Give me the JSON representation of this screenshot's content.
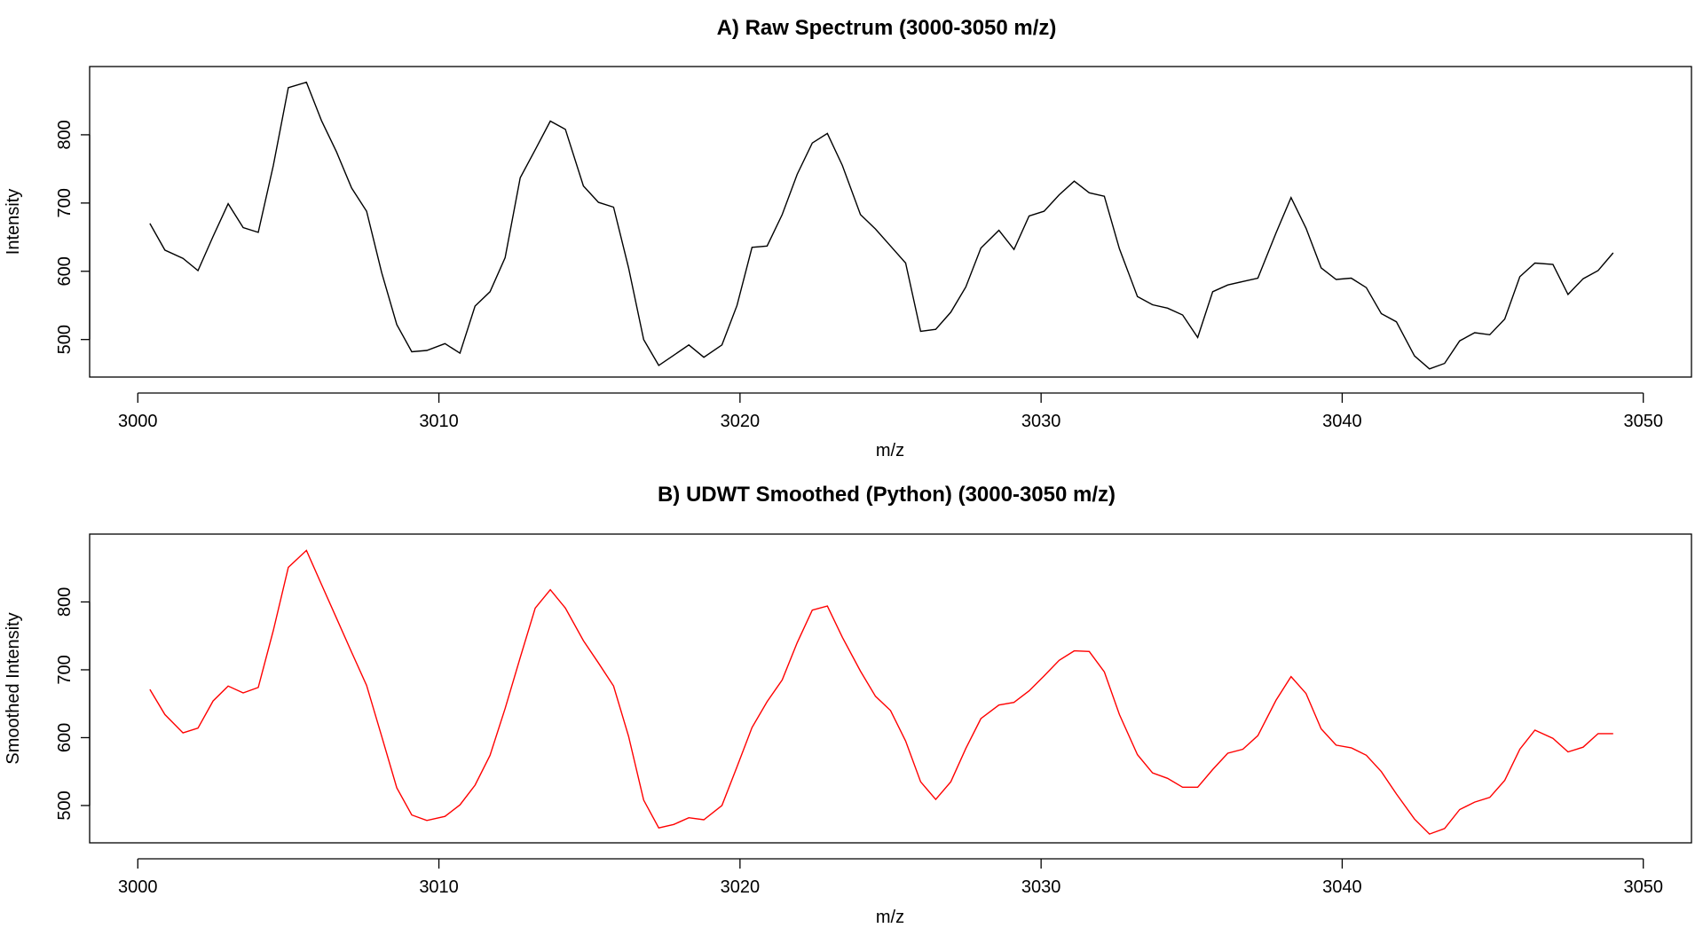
{
  "chart_data": [
    {
      "type": "line",
      "title": "A) Raw Spectrum (3000-3050 m/z)",
      "xlabel": "m/z",
      "ylabel": "Intensity",
      "xlim": [
        2998.4,
        3051.6
      ],
      "ylim": [
        445,
        900
      ],
      "xticks": [
        "3000",
        "3010",
        "3020",
        "3030",
        "3040",
        "3050"
      ],
      "xtick_values": [
        3000,
        3010,
        3020,
        3030,
        3040,
        3050
      ],
      "yticks": [
        "500",
        "600",
        "700",
        "800"
      ],
      "ytick_values": [
        500,
        600,
        700,
        800
      ],
      "color": "#000000",
      "series": [
        {
          "x": [
            3000.4,
            3000.9,
            3001.5,
            3002.0,
            3002.5,
            3003.0,
            3003.5,
            3004.0,
            3004.5,
            3005.0,
            3005.6,
            3006.1,
            3006.6,
            3007.1,
            3007.6,
            3008.1,
            3008.6,
            3009.1,
            3009.6,
            3010.2,
            3010.7,
            3011.2,
            3011.7,
            3012.2,
            3012.7,
            3013.2,
            3013.7,
            3014.2,
            3014.8,
            3015.3,
            3015.8,
            3016.3,
            3016.8,
            3017.3,
            3017.8,
            3018.3,
            3018.8,
            3019.4,
            3019.9,
            3020.4,
            3020.9,
            3021.4,
            3021.9,
            3022.4,
            3022.9,
            3023.4,
            3024.0,
            3024.5,
            3025.0,
            3025.5,
            3026.0,
            3026.5,
            3027.0,
            3027.5,
            3028.0,
            3028.6,
            3029.1,
            3029.6,
            3030.1,
            3030.6,
            3031.1,
            3031.6,
            3032.1,
            3032.6,
            3033.2,
            3033.7,
            3034.2,
            3034.7,
            3035.2,
            3035.7,
            3036.2,
            3036.7,
            3037.2,
            3037.8,
            3038.3,
            3038.8,
            3039.3,
            3039.8,
            3040.3,
            3040.8,
            3041.3,
            3041.8,
            3042.4,
            3042.9,
            3043.4,
            3043.9,
            3044.4,
            3044.9,
            3045.4,
            3045.9,
            3046.4,
            3047.0,
            3047.5,
            3048.0,
            3048.5,
            3049.0,
            3049.5
          ],
          "y": [
            670,
            631,
            619,
            601,
            651,
            699,
            664,
            657,
            755,
            869,
            877,
            821,
            775,
            722,
            688,
            598,
            522,
            482,
            484,
            494,
            480,
            549,
            570,
            620,
            737,
            778,
            820,
            808,
            725,
            701,
            694,
            605,
            500,
            462,
            477,
            492,
            474,
            492,
            550,
            635,
            637,
            683,
            742,
            788,
            802,
            755,
            683,
            662,
            637,
            612,
            512,
            515,
            540,
            577,
            634,
            660,
            632,
            681,
            688,
            712,
            732,
            715,
            710,
            633,
            563,
            551,
            546,
            536,
            503,
            570,
            580,
            585,
            590,
            656,
            708,
            663,
            605,
            588,
            590,
            576,
            538,
            526,
            476,
            457,
            465,
            498,
            510,
            507,
            530,
            592,
            612,
            610,
            566,
            589,
            601,
            627,
            null
          ]
        }
      ]
    },
    {
      "type": "line",
      "title": "B) UDWT Smoothed (Python) (3000-3050 m/z)",
      "xlabel": "m/z",
      "ylabel": "Smoothed Intensity",
      "xlim": [
        2998.4,
        3051.6
      ],
      "ylim": [
        445,
        900
      ],
      "xticks": [
        "3000",
        "3010",
        "3020",
        "3030",
        "3040",
        "3050"
      ],
      "xtick_values": [
        3000,
        3010,
        3020,
        3030,
        3040,
        3050
      ],
      "yticks": [
        "500",
        "600",
        "700",
        "800"
      ],
      "ytick_values": [
        500,
        600,
        700,
        800
      ],
      "color": "#ff0000",
      "series": [
        {
          "x": [
            3000.4,
            3000.9,
            3001.5,
            3002.0,
            3002.5,
            3003.0,
            3003.5,
            3004.0,
            3004.5,
            3005.0,
            3005.6,
            3006.1,
            3006.6,
            3007.1,
            3007.6,
            3008.1,
            3008.6,
            3009.1,
            3009.6,
            3010.2,
            3010.7,
            3011.2,
            3011.7,
            3012.2,
            3012.7,
            3013.2,
            3013.7,
            3014.2,
            3014.8,
            3015.3,
            3015.8,
            3016.3,
            3016.8,
            3017.3,
            3017.8,
            3018.3,
            3018.8,
            3019.4,
            3019.9,
            3020.4,
            3020.9,
            3021.4,
            3021.9,
            3022.4,
            3022.9,
            3023.4,
            3024.0,
            3024.5,
            3025.0,
            3025.5,
            3026.0,
            3026.5,
            3027.0,
            3027.5,
            3028.0,
            3028.6,
            3029.1,
            3029.6,
            3030.1,
            3030.6,
            3031.1,
            3031.6,
            3032.1,
            3032.6,
            3033.2,
            3033.7,
            3034.2,
            3034.7,
            3035.2,
            3035.7,
            3036.2,
            3036.7,
            3037.2,
            3037.8,
            3038.3,
            3038.8,
            3039.3,
            3039.8,
            3040.3,
            3040.8,
            3041.3,
            3041.8,
            3042.4,
            3042.9,
            3043.4,
            3043.9,
            3044.4,
            3044.9,
            3045.4,
            3045.9,
            3046.4,
            3047.0,
            3047.5,
            3048.0,
            3048.5,
            3049.0,
            3049.5
          ],
          "y": [
            671,
            634,
            607,
            614,
            654,
            676,
            666,
            674,
            758,
            851,
            876,
            826,
            776,
            726,
            677,
            602,
            526,
            486,
            478,
            484,
            501,
            530,
            574,
            643,
            718,
            791,
            818,
            791,
            743,
            710,
            676,
            602,
            508,
            467,
            472,
            482,
            479,
            500,
            557,
            615,
            653,
            685,
            740,
            788,
            794,
            748,
            698,
            661,
            640,
            595,
            535,
            509,
            535,
            584,
            628,
            648,
            652,
            669,
            691,
            714,
            728,
            727,
            697,
            634,
            575,
            548,
            540,
            527,
            527,
            553,
            577,
            583,
            603,
            655,
            690,
            665,
            613,
            589,
            585,
            574,
            550,
            517,
            480,
            458,
            466,
            494,
            505,
            512,
            537,
            583,
            611,
            599,
            579,
            586,
            606,
            606,
            null
          ]
        }
      ]
    }
  ]
}
